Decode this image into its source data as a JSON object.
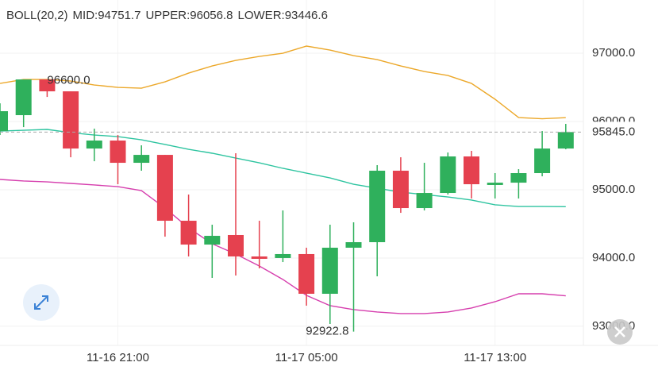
{
  "chart_data": {
    "type": "candlestick",
    "indicator": "BOLL(20,2)",
    "categories": [
      null,
      null,
      null,
      null,
      null,
      "11-16 21:00",
      null,
      null,
      null,
      null,
      null,
      null,
      null,
      "11-17 05:00",
      null,
      null,
      null,
      null,
      null,
      null,
      null,
      "11-17 13:00",
      null,
      null,
      null
    ],
    "open": [
      95860,
      96093,
      96616,
      96442,
      95604,
      95721,
      95395,
      95511,
      94546,
      94197,
      94337,
      94023,
      94000,
      94058,
      93476,
      94151,
      94232,
      95279,
      94732,
      94953,
      95488,
      95070,
      95104,
      95244,
      95604
    ],
    "high": [
      96267,
      96580,
      96600,
      96442,
      95895,
      95802,
      95651,
      95511,
      94930,
      94488,
      95535,
      94546,
      94697,
      94151,
      94488,
      94523,
      95360,
      95476,
      95395,
      95546,
      95570,
      95244,
      95302,
      95860,
      95965
    ],
    "low": [
      95802,
      95918,
      96360,
      95476,
      95418,
      95081,
      95279,
      94313,
      94023,
      93709,
      93744,
      93848,
      93941,
      93302,
      93034,
      92922.8,
      93732,
      94662,
      94697,
      94930,
      94872,
      94872,
      94872,
      95197,
      95593
    ],
    "close": [
      96151,
      96616,
      96442,
      95604,
      95721,
      95395,
      95511,
      94546,
      94197,
      94325,
      94023,
      93988,
      94058,
      93476,
      94151,
      94232,
      95279,
      94732,
      94953,
      95488,
      95081,
      95104,
      95244,
      95604,
      95845
    ],
    "up_color": "#2fb05c",
    "down_color": "#e5414f",
    "series": [
      {
        "name": "MID:94751.7",
        "color": "#2ec4a0",
        "values": [
          95860,
          95872,
          95884,
          95837,
          95802,
          95779,
          95732,
          95663,
          95593,
          95535,
          95465,
          95395,
          95314,
          95244,
          95174,
          95081,
          95023,
          94965,
          94930,
          94895,
          94849,
          94779,
          94755,
          94755,
          94751.7
        ]
      },
      {
        "name": "UPPER:96056.8",
        "color": "#eca82a",
        "values": [
          96558,
          96616,
          96616,
          96593,
          96535,
          96500,
          96488,
          96581,
          96709,
          96814,
          96895,
          96953,
          97000,
          97105,
          97047,
          96965,
          96907,
          96814,
          96733,
          96674,
          96558,
          96326,
          96058,
          96040,
          96056.8
        ]
      },
      {
        "name": "LOWER:93446.6",
        "color": "#d63fae",
        "values": [
          95151,
          95128,
          95116,
          95093,
          95070,
          95046,
          94988,
          94732,
          94441,
          94209,
          94058,
          93883,
          93686,
          93453,
          93302,
          93244,
          93209,
          93186,
          93186,
          93209,
          93267,
          93360,
          93476,
          93476,
          93446.6
        ]
      }
    ],
    "high_label": "96600.0",
    "low_label": "92922.8",
    "last_price_label": "95845.0",
    "ylim": [
      92720,
      97780
    ],
    "yticks": [
      {
        "value": 97000,
        "label": "97000.0"
      },
      {
        "value": 96000,
        "label": "96000.0"
      },
      {
        "value": 95000,
        "label": "95000.0"
      },
      {
        "value": 94000,
        "label": "94000.0"
      },
      {
        "value": 93000,
        "label": "93000.0"
      }
    ],
    "grid": true
  }
}
